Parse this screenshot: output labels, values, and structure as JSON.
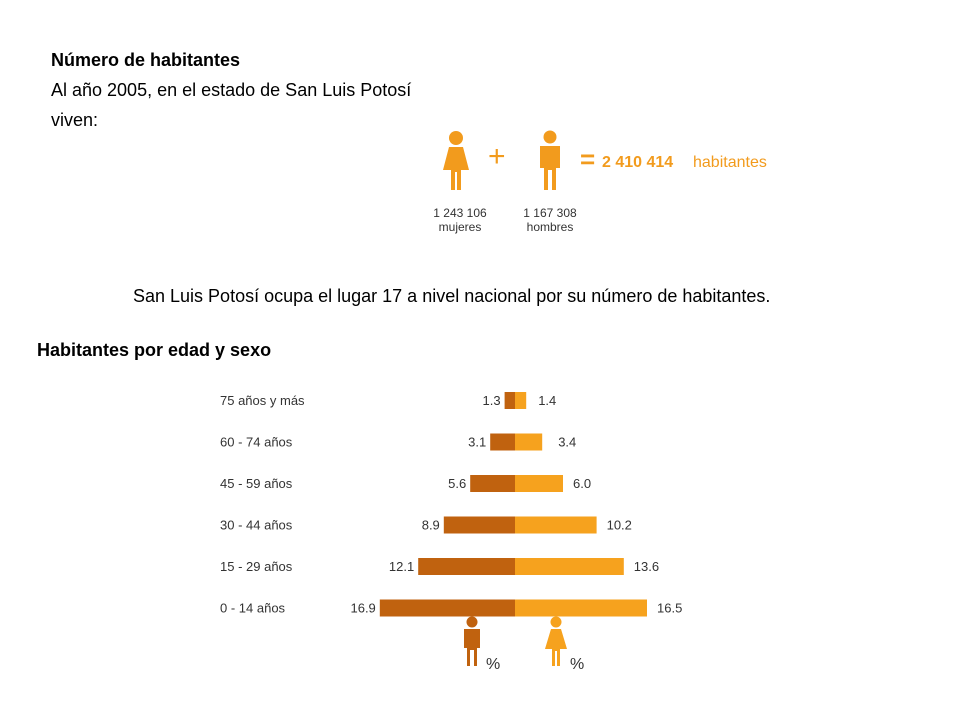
{
  "header": {
    "title": "Número de habitantes",
    "line1": "Al año 2005, en el estado de San Luis Potosí",
    "line2": "viven:"
  },
  "population": {
    "plus": "+",
    "equals": "=",
    "total": "2 410 414",
    "total_unit": "habitantes",
    "women_value": "1 243 106",
    "women_label": "mujeres",
    "men_value": "1 167 308",
    "men_label": "hombres"
  },
  "note": "San Luis Potosí ocupa el lugar 17 a nivel nacional por su número de habitantes.",
  "section_title": "Habitantes por edad y sexo",
  "legend": {
    "men": "%",
    "women": "%"
  },
  "colors": {
    "men": "#c0620f",
    "women": "#f6a21e",
    "icon_orange": "#f29b1d",
    "icon_dark": "#c0620f"
  },
  "chart_data": {
    "type": "bar",
    "subtype": "population-pyramid",
    "categories": [
      "75 años y más",
      "60 - 74   años",
      "45 - 59   años",
      "30 - 44   años",
      "15 - 29   años",
      "0 - 14   años"
    ],
    "series": [
      {
        "name": "hombres",
        "values": [
          1.3,
          3.1,
          5.6,
          8.9,
          12.1,
          16.9
        ]
      },
      {
        "name": "mujeres",
        "values": [
          1.4,
          3.4,
          6.0,
          10.2,
          13.6,
          16.5
        ]
      }
    ],
    "unit": "%",
    "title": "",
    "xlabel": "",
    "ylabel": "",
    "grid": false
  }
}
